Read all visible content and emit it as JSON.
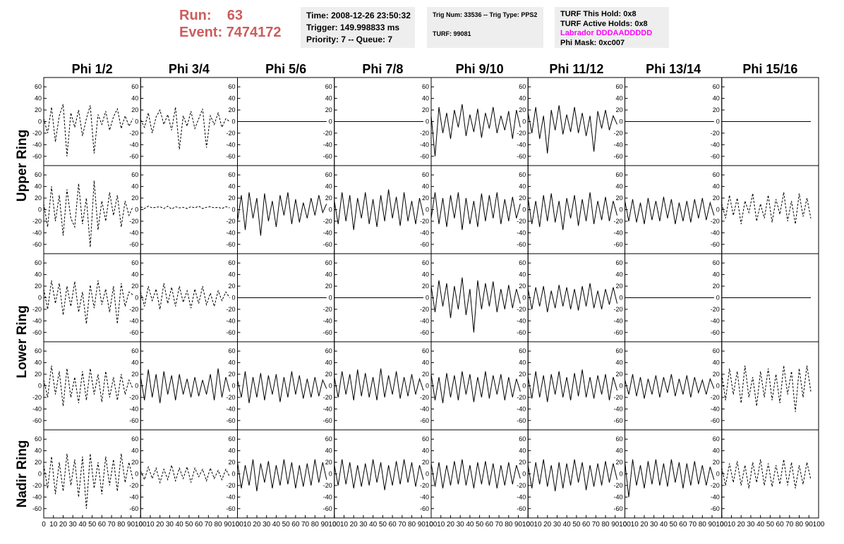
{
  "header": {
    "run_label": "Run:",
    "run": "63",
    "event_label": "Event:",
    "event": "7474172",
    "info1": [
      "Time: 2008-12-26 23:50:32",
      "Trigger: 149.998833 ms",
      "Priority: 7 -- Queue: 7"
    ],
    "info2": [
      "Trig Num: 33536 -- Trig Type: PPS2",
      "TURF: 99081"
    ],
    "info3": [
      "TURF This Hold: 0x8",
      "TURF Active Holds: 0x8",
      "Labrador DDDAADDDDD",
      "Phi Mask: 0xc007"
    ],
    "info3_colors": [
      "#000000",
      "#000000",
      "#ff00ff",
      "#000000"
    ]
  },
  "columns": [
    "Phi 1/2",
    "Phi 3/4",
    "Phi 5/6",
    "Phi 7/8",
    "Phi 9/10",
    "Phi 11/12",
    "Phi 13/14",
    "Phi 15/16"
  ],
  "ring_labels": [
    "Upper Ring",
    "Lower Ring",
    "Nadir Ring"
  ],
  "axes": {
    "ylim": [
      -70,
      70
    ],
    "yticks": [
      -60,
      -40,
      -20,
      0,
      20,
      40,
      60
    ],
    "xlim": [
      0,
      100
    ],
    "xticks": [
      0,
      10,
      20,
      30,
      40,
      50,
      60,
      70,
      80,
      90,
      100
    ]
  },
  "x": [
    0,
    4,
    8,
    12,
    16,
    20,
    24,
    28,
    32,
    36,
    40,
    44,
    48,
    52,
    56,
    60,
    64,
    68,
    72,
    76,
    80,
    84,
    88,
    92
  ],
  "panels": [
    [
      {
        "style": "dashed",
        "values": [
          5,
          -20,
          25,
          -35,
          10,
          30,
          -60,
          15,
          -10,
          20,
          -25,
          5,
          28,
          -55,
          12,
          -5,
          18,
          -15,
          8,
          22,
          -12,
          10,
          -8,
          5
        ]
      },
      {
        "style": "dashed",
        "values": [
          3,
          -10,
          15,
          -20,
          8,
          20,
          -5,
          12,
          -15,
          25,
          -48,
          10,
          -8,
          18,
          -12,
          5,
          22,
          -45,
          10,
          -5,
          15,
          -10,
          5,
          0
        ]
      },
      {
        "style": "solid",
        "values": [
          0,
          0,
          0,
          0,
          0,
          0,
          0,
          0,
          0,
          0,
          0,
          0,
          0,
          0,
          0,
          0,
          0,
          0,
          0,
          0,
          0,
          0,
          0,
          0
        ]
      },
      {
        "style": "solid",
        "values": [
          0,
          0,
          0,
          0,
          0,
          0,
          0,
          0,
          0,
          0,
          0,
          0,
          0,
          0,
          0,
          0,
          0,
          0,
          0,
          0,
          0,
          0,
          0,
          0
        ]
      },
      {
        "style": "solid",
        "values": [
          10,
          -60,
          25,
          -20,
          15,
          -30,
          20,
          -10,
          30,
          -25,
          12,
          -18,
          22,
          -28,
          15,
          -12,
          25,
          -20,
          10,
          -15,
          18,
          -30,
          20,
          -10
        ]
      },
      {
        "style": "solid",
        "values": [
          15,
          -20,
          25,
          -30,
          10,
          -55,
          20,
          -15,
          28,
          -22,
          12,
          -18,
          25,
          -20,
          15,
          -25,
          10,
          -52,
          18,
          -12,
          20,
          -15,
          10,
          -5
        ]
      },
      {
        "style": "solid",
        "values": [
          0,
          0,
          0,
          0,
          0,
          0,
          0,
          0,
          0,
          0,
          0,
          0,
          0,
          0,
          0,
          0,
          0,
          0,
          0,
          0,
          0,
          0,
          0,
          0
        ]
      },
      {
        "style": "solid",
        "values": [
          0,
          0,
          0,
          0,
          0,
          0,
          0,
          0,
          0,
          0,
          0,
          0,
          0,
          0,
          0,
          0,
          0,
          0,
          0,
          0,
          0,
          0,
          0,
          0
        ]
      }
    ],
    [
      {
        "style": "dashed",
        "values": [
          10,
          -30,
          40,
          -20,
          25,
          -45,
          35,
          -15,
          -30,
          45,
          -25,
          20,
          -65,
          50,
          -35,
          15,
          -20,
          30,
          -10,
          25,
          -30,
          15,
          -10,
          5
        ]
      },
      {
        "style": "dashed",
        "values": [
          5,
          2,
          6,
          3,
          4,
          5,
          2,
          6,
          1,
          5,
          3,
          4,
          2,
          5,
          3,
          6,
          2,
          4,
          5,
          3,
          4,
          2,
          5,
          3
        ]
      },
      {
        "style": "solid",
        "values": [
          -20,
          25,
          -35,
          30,
          -15,
          20,
          -45,
          28,
          -20,
          15,
          -30,
          25,
          -10,
          30,
          -25,
          18,
          -22,
          12,
          -15,
          20,
          -10,
          25,
          -5,
          10
        ]
      },
      {
        "style": "solid",
        "values": [
          15,
          -25,
          30,
          -20,
          25,
          -35,
          20,
          -15,
          30,
          -25,
          18,
          -30,
          25,
          -20,
          35,
          -15,
          22,
          -28,
          30,
          -20,
          15,
          -25,
          20,
          -10
        ]
      },
      {
        "style": "solid",
        "values": [
          -15,
          30,
          -25,
          20,
          -30,
          25,
          -15,
          30,
          -35,
          20,
          -25,
          15,
          -30,
          28,
          -20,
          25,
          -15,
          30,
          -25,
          18,
          -20,
          22,
          -15,
          10
        ]
      },
      {
        "style": "solid",
        "values": [
          20,
          -25,
          15,
          -30,
          25,
          -20,
          28,
          -22,
          15,
          -35,
          20,
          -15,
          25,
          -28,
          18,
          -20,
          30,
          -25,
          15,
          -18,
          22,
          -20,
          15,
          -10
        ]
      },
      {
        "style": "solid",
        "values": [
          15,
          -20,
          18,
          -22,
          12,
          -25,
          20,
          -18,
          15,
          -20,
          22,
          -15,
          18,
          -25,
          12,
          -20,
          15,
          -22,
          18,
          -15,
          20,
          -18,
          12,
          -10
        ]
      },
      {
        "style": "dashed",
        "values": [
          10,
          -15,
          25,
          -10,
          20,
          -25,
          15,
          -5,
          28,
          -20,
          10,
          -15,
          25,
          -22,
          18,
          -8,
          30,
          -20,
          15,
          -25,
          28,
          -12,
          20,
          -15
        ]
      }
    ],
    [
      {
        "style": "dashed",
        "values": [
          15,
          -20,
          30,
          -10,
          25,
          -30,
          20,
          -15,
          28,
          -25,
          10,
          -45,
          22,
          -18,
          30,
          -12,
          15,
          -25,
          20,
          -45,
          25,
          -15,
          10,
          5
        ]
      },
      {
        "style": "dashed",
        "values": [
          10,
          -15,
          20,
          -5,
          15,
          -20,
          25,
          -10,
          18,
          -15,
          20,
          -8,
          12,
          -18,
          15,
          -10,
          20,
          -12,
          8,
          -15,
          12,
          -5,
          10,
          0
        ]
      },
      {
        "style": "solid",
        "values": [
          0,
          0,
          0,
          0,
          0,
          0,
          0,
          0,
          0,
          0,
          0,
          0,
          0,
          0,
          0,
          0,
          0,
          0,
          0,
          0,
          0,
          0,
          0,
          0
        ]
      },
      {
        "style": "solid",
        "values": [
          0,
          0,
          0,
          0,
          0,
          0,
          0,
          0,
          0,
          0,
          0,
          0,
          0,
          0,
          0,
          0,
          0,
          0,
          0,
          0,
          0,
          0,
          0,
          0
        ]
      },
      {
        "style": "solid",
        "values": [
          20,
          -25,
          30,
          -15,
          25,
          -35,
          20,
          -20,
          35,
          -30,
          15,
          -60,
          30,
          -20,
          25,
          -15,
          28,
          -25,
          15,
          -20,
          22,
          -18,
          15,
          -10
        ]
      },
      {
        "style": "solid",
        "values": [
          15,
          -20,
          18,
          -15,
          20,
          -25,
          12,
          -18,
          22,
          -15,
          18,
          -20,
          15,
          -22,
          20,
          -15,
          25,
          -18,
          12,
          -20,
          15,
          -12,
          18,
          -10
        ]
      },
      {
        "style": "solid",
        "values": [
          0,
          0,
          0,
          0,
          0,
          0,
          0,
          0,
          0,
          0,
          0,
          0,
          0,
          0,
          0,
          0,
          0,
          0,
          0,
          0,
          0,
          0,
          0,
          0
        ]
      },
      {
        "style": "solid",
        "values": [
          0,
          0,
          0,
          0,
          0,
          0,
          0,
          0,
          0,
          0,
          0,
          0,
          0,
          0,
          0,
          0,
          0,
          0,
          0,
          0,
          0,
          0,
          0,
          0
        ]
      }
    ],
    [
      {
        "style": "dashed",
        "values": [
          10,
          -20,
          35,
          -15,
          25,
          -35,
          30,
          -20,
          15,
          -30,
          25,
          -25,
          30,
          -15,
          20,
          -28,
          25,
          -20,
          15,
          -25,
          20,
          -15,
          10,
          -5
        ]
      },
      {
        "style": "solid",
        "values": [
          15,
          -25,
          28,
          -20,
          20,
          -30,
          25,
          -15,
          18,
          -25,
          20,
          -15,
          12,
          -20,
          15,
          -18,
          10,
          -15,
          20,
          -25,
          30,
          -20,
          15,
          -10
        ]
      },
      {
        "style": "solid",
        "values": [
          10,
          -20,
          25,
          -30,
          15,
          -20,
          22,
          -25,
          18,
          -15,
          20,
          -28,
          15,
          -20,
          25,
          -15,
          18,
          -22,
          12,
          -20,
          15,
          -18,
          10,
          -5
        ]
      },
      {
        "style": "solid",
        "values": [
          15,
          -20,
          25,
          -15,
          20,
          -25,
          28,
          -18,
          22,
          -20,
          15,
          -25,
          30,
          -20,
          18,
          -15,
          25,
          -22,
          15,
          -18,
          20,
          -15,
          12,
          -8
        ]
      },
      {
        "style": "solid",
        "values": [
          20,
          -25,
          15,
          -30,
          22,
          -20,
          18,
          -25,
          25,
          -15,
          20,
          -28,
          15,
          -20,
          25,
          -22,
          18,
          -15,
          20,
          -25,
          15,
          -20,
          12,
          -10
        ]
      },
      {
        "style": "solid",
        "values": [
          15,
          -22,
          25,
          -20,
          18,
          -28,
          20,
          -15,
          25,
          -20,
          15,
          -25,
          22,
          -18,
          28,
          -20,
          15,
          -22,
          18,
          -15,
          20,
          -25,
          15,
          -8
        ]
      },
      {
        "style": "solid",
        "values": [
          10,
          -15,
          20,
          -18,
          15,
          -22,
          12,
          -15,
          18,
          -20,
          15,
          -12,
          20,
          -18,
          12,
          -15,
          18,
          -20,
          15,
          -12,
          10,
          -15,
          12,
          -5
        ]
      },
      {
        "style": "dashed",
        "values": [
          20,
          -25,
          30,
          -15,
          25,
          -30,
          35,
          -20,
          15,
          -35,
          25,
          -20,
          30,
          -25,
          20,
          -30,
          35,
          -15,
          25,
          -45,
          30,
          -20,
          35,
          -10
        ]
      }
    ],
    [
      {
        "style": "dashed",
        "values": [
          15,
          -25,
          30,
          -35,
          20,
          -30,
          35,
          -20,
          25,
          -40,
          30,
          -60,
          35,
          -25,
          20,
          -35,
          30,
          -20,
          25,
          -30,
          35,
          -15,
          20,
          -10
        ]
      },
      {
        "style": "dashed",
        "values": [
          5,
          -10,
          12,
          -8,
          10,
          -15,
          8,
          -10,
          15,
          -12,
          10,
          -8,
          12,
          -15,
          10,
          -5,
          8,
          -12,
          10,
          -8,
          6,
          -10,
          8,
          -5
        ]
      },
      {
        "style": "solid",
        "values": [
          20,
          -25,
          15,
          -20,
          25,
          -30,
          18,
          -15,
          22,
          -25,
          15,
          -20,
          25,
          -18,
          20,
          -25,
          15,
          -22,
          18,
          -20,
          25,
          -15,
          20,
          -10
        ]
      },
      {
        "style": "solid",
        "values": [
          15,
          -20,
          25,
          -18,
          20,
          -25,
          15,
          -22,
          18,
          -20,
          25,
          -15,
          20,
          -28,
          15,
          -20,
          22,
          -18,
          25,
          -15,
          20,
          -22,
          15,
          -10
        ]
      },
      {
        "style": "solid",
        "values": [
          18,
          -22,
          20,
          -25,
          15,
          -20,
          22,
          -18,
          25,
          -20,
          15,
          -25,
          20,
          -18,
          22,
          -20,
          18,
          -25,
          15,
          -20,
          20,
          -18,
          15,
          -8
        ]
      },
      {
        "style": "solid",
        "values": [
          15,
          -25,
          20,
          -18,
          25,
          -22,
          15,
          -30,
          20,
          -25,
          18,
          -20,
          25,
          -15,
          20,
          -28,
          15,
          -22,
          18,
          -20,
          22,
          -15,
          18,
          -10
        ]
      },
      {
        "style": "solid",
        "values": [
          20,
          -40,
          25,
          -20,
          15,
          -25,
          22,
          -18,
          25,
          -20,
          18,
          -22,
          25,
          -15,
          20,
          -25,
          18,
          -20,
          22,
          -18,
          15,
          -20,
          12,
          -10
        ]
      },
      {
        "style": "dashed",
        "values": [
          10,
          -20,
          18,
          -15,
          22,
          -20,
          15,
          -25,
          20,
          -15,
          25,
          -20,
          18,
          -22,
          15,
          -18,
          25,
          -20,
          20,
          -25,
          15,
          -18,
          20,
          -10
        ]
      }
    ]
  ]
}
